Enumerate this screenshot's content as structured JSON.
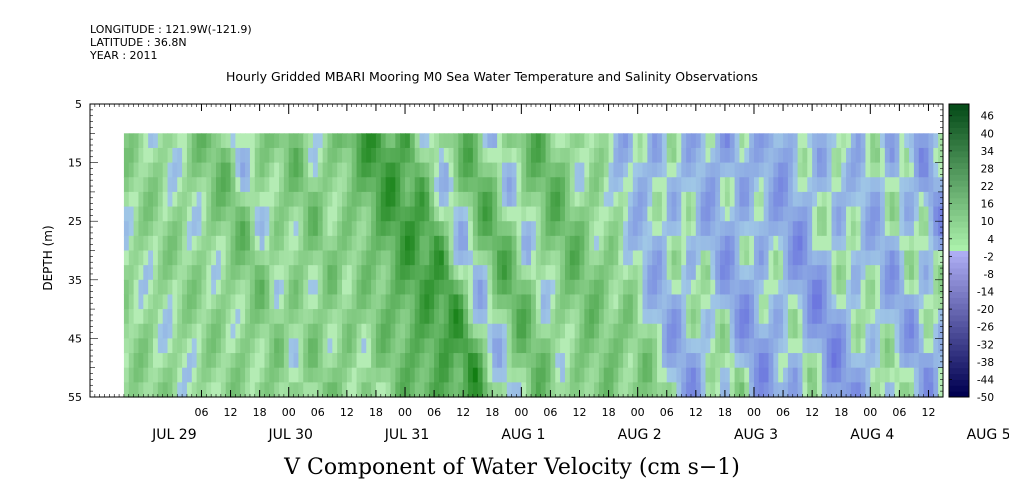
{
  "header": {
    "longitude": "LONGITUDE : 121.9W(-121.9)",
    "latitude": "LATITUDE : 36.8N",
    "year": "YEAR : 2011"
  },
  "chart_data": {
    "type": "heatmap",
    "title": "Hourly Gridded MBARI Mooring M0 Sea Water Temperature and Salinity Observations",
    "xlabel": "V Component of Water Velocity (cm s−1)",
    "ylabel": "DEPTH (m)",
    "y_ticks": [
      "5",
      "15",
      "25",
      "35",
      "45",
      "55"
    ],
    "ylim": [
      5,
      55
    ],
    "y_inverted": true,
    "data_depth_range": [
      10,
      55
    ],
    "x_range_hours": [
      -17,
      159
    ],
    "data_start_hour": -10,
    "x_tick_labels": [
      "06",
      "12",
      "18",
      "00",
      "06",
      "12",
      "18",
      "00",
      "06",
      "12",
      "18",
      "00",
      "06",
      "12",
      "18",
      "00",
      "06",
      "12",
      "18",
      "00",
      "06",
      "12",
      "18",
      "00",
      "06",
      "12",
      "18",
      "00",
      "06",
      "12",
      "18",
      "00"
    ],
    "x_date_labels": [
      "JUL 29",
      "JUL 30",
      "JUL 31",
      "AUG  1",
      "AUG  2",
      "AUG  3",
      "AUG  4",
      "AUG  5"
    ],
    "colorbar_ticks": [
      "46",
      "40",
      "34",
      "28",
      "22",
      "16",
      "10",
      "4",
      "-2",
      "-8",
      "-14",
      "-20",
      "-26",
      "-32",
      "-38",
      "-44",
      "-50"
    ],
    "colorbar_range": [
      -50,
      50
    ],
    "colors": {
      "positive": "#1ec81e",
      "negative": "#8c8cf0",
      "zero": "#b4ecb4"
    },
    "v_profile_hours": [
      [
        0,
        6
      ],
      [
        4,
        10
      ],
      [
        9,
        14
      ],
      [
        12,
        -3
      ],
      [
        16,
        12
      ],
      [
        20,
        8
      ],
      [
        24,
        14
      ],
      [
        27,
        2
      ],
      [
        31,
        12
      ],
      [
        35,
        16
      ],
      [
        38,
        22
      ],
      [
        42,
        26
      ],
      [
        45,
        18
      ],
      [
        48,
        28
      ],
      [
        51,
        6
      ],
      [
        54,
        -4
      ],
      [
        57,
        10
      ],
      [
        60,
        20
      ],
      [
        63,
        12
      ],
      [
        66,
        -2
      ],
      [
        69,
        8
      ],
      [
        72,
        14
      ],
      [
        75,
        18
      ],
      [
        78,
        10
      ],
      [
        81,
        4
      ],
      [
        84,
        12
      ],
      [
        87,
        6
      ],
      [
        90,
        -6
      ],
      [
        93,
        -10
      ],
      [
        96,
        2
      ],
      [
        99,
        -4
      ],
      [
        102,
        8
      ],
      [
        105,
        -8
      ],
      [
        108,
        -12
      ],
      [
        111,
        -2
      ],
      [
        114,
        -10
      ],
      [
        117,
        4
      ],
      [
        120,
        -6
      ],
      [
        123,
        -14
      ],
      [
        126,
        -8
      ],
      [
        129,
        2
      ],
      [
        132,
        -6
      ],
      [
        135,
        6
      ],
      [
        138,
        -4
      ],
      [
        141,
        -10
      ],
      [
        144,
        4
      ],
      [
        147,
        -8
      ],
      [
        150,
        6
      ],
      [
        153,
        -12
      ],
      [
        156,
        -4
      ]
    ]
  }
}
